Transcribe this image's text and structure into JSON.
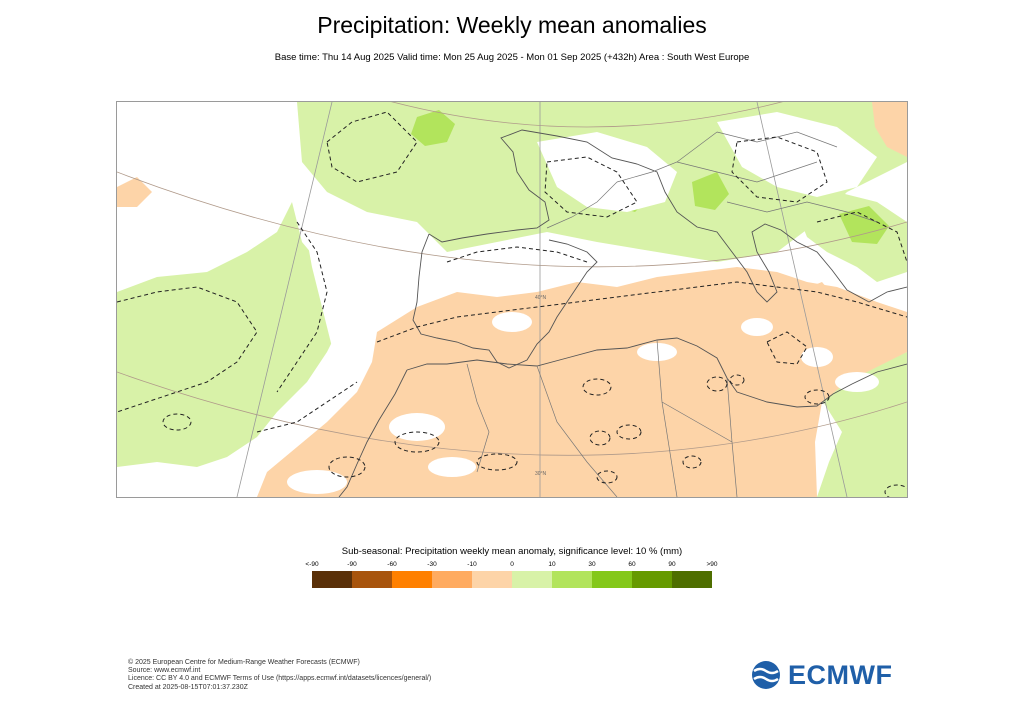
{
  "title": "Precipitation: Weekly mean anomalies",
  "subtitle": "Base time: Thu 14 Aug 2025 Valid time: Mon 25 Aug 2025 - Mon 01 Sep 2025 (+432h) Area : South West Europe",
  "legend": {
    "title": "Sub-seasonal: Precipitation weekly mean anomaly, significance level: 10 % (mm)",
    "ticks": [
      "<-90",
      "-90",
      "-60",
      "-30",
      "-10",
      "0",
      "10",
      "30",
      "60",
      "90",
      ">90"
    ],
    "colors": [
      "#5a3008",
      "#a8540c",
      "#ff8000",
      "#ffab60",
      "#fdd4a8",
      "#d8f2a8",
      "#b2e45c",
      "#84c81a",
      "#669a00",
      "#4e6e00"
    ]
  },
  "map": {
    "colors": {
      "dry": "#fdd4a8",
      "wet": "#d8f2a8",
      "wet_strong": "#b2e45c",
      "neutral": "#ffffff"
    },
    "latitude_labels": [
      "40°N",
      "30°N"
    ]
  },
  "footer": {
    "copyright": "© 2025 European Centre for Medium-Range Weather Forecasts (ECMWF)",
    "source": "Source: www.ecmwf.int",
    "licence": "Licence: CC BY 4.0 and ECMWF Terms of Use (https://apps.ecmwf.int/datasets/licences/general/)",
    "created": "Created at 2025-08-15T07:01:37.230Z"
  },
  "logo": {
    "text": "ECMWF",
    "icon": "ecmwf-logo-icon",
    "color": "#1f5fa8"
  }
}
